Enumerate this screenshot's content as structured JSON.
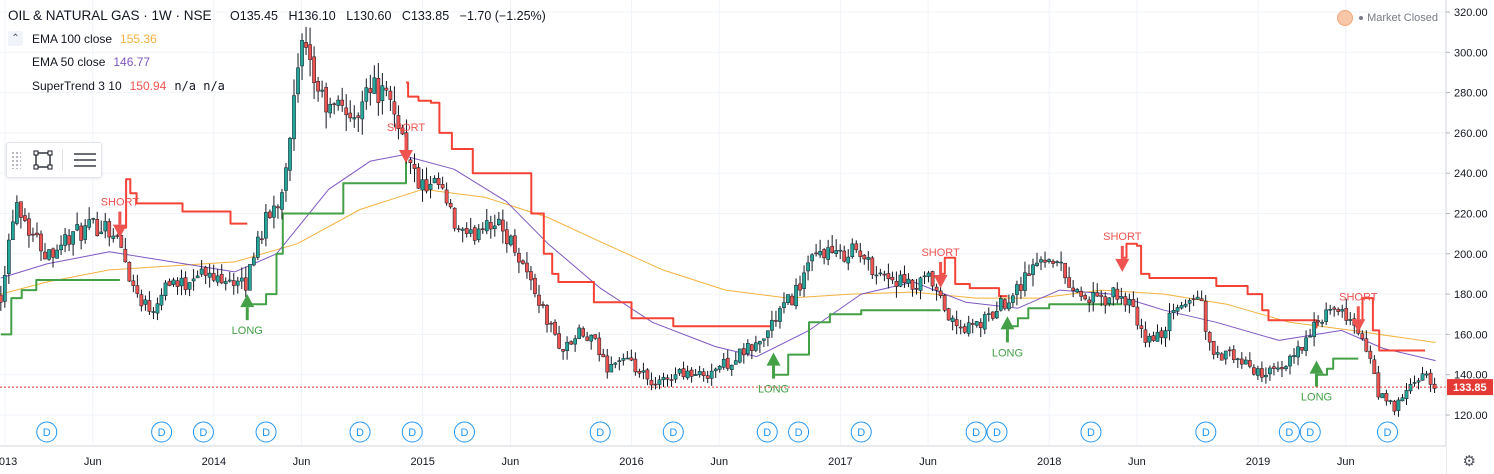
{
  "header": {
    "symbol": "OIL & NATURAL GAS · 1W · NSE",
    "o_label": "O",
    "o_value": "135.45",
    "h_label": "H",
    "h_value": "136.10",
    "l_label": "L",
    "l_value": "130.60",
    "c_label": "C",
    "c_value": "133.85",
    "change": "−1.70 (−1.25%)"
  },
  "legend": [
    {
      "label": "EMA 100 close",
      "value": "155.36",
      "color": "#f5b23e"
    },
    {
      "label": "EMA 50 close",
      "value": "146.77",
      "color": "#7e57c2"
    },
    {
      "label": "SuperTrend 3 10",
      "value": "150.94",
      "extra": "n/a n/a",
      "color": "#ef5350"
    }
  ],
  "status": {
    "label": "Market Closed"
  },
  "colors": {
    "up": "#26a69a",
    "down": "#ef5350",
    "wick": "#131722",
    "supertrend_up": "#43a047",
    "supertrend_down": "#f44336",
    "ema100": "#f5b23e",
    "ema50": "#7e57c2",
    "price_line": "#e53935",
    "dividend": "#2196f3"
  },
  "icons": {
    "toolbox": [
      "rectangle-select-icon",
      "list-settings-icon"
    ],
    "settings": "gear-icon"
  },
  "chart_data": {
    "type": "candlestick",
    "title": "OIL & NATURAL GAS · 1W · NSE",
    "y_axis": {
      "range": [
        110,
        322
      ],
      "ticks": [
        120,
        140,
        160,
        180,
        200,
        220,
        240,
        260,
        280,
        300,
        320
      ],
      "tick_labels": [
        "120.00",
        "140.00",
        "160.00",
        "180.00",
        "200.00",
        "220.00",
        "240.00",
        "260.00",
        "280.00",
        "300.00",
        "320.00"
      ],
      "position": "right",
      "grid": true
    },
    "x_axis": {
      "range": [
        "2013-01",
        "2019-10"
      ],
      "labels": [
        {
          "t": 2013.0,
          "text": "2013"
        },
        {
          "t": 2013.42,
          "text": "Jun"
        },
        {
          "t": 2014.0,
          "text": "2014"
        },
        {
          "t": 2014.42,
          "text": "Jun"
        },
        {
          "t": 2015.0,
          "text": "2015"
        },
        {
          "t": 2015.42,
          "text": "Jun"
        },
        {
          "t": 2016.0,
          "text": "2016"
        },
        {
          "t": 2016.42,
          "text": "Jun"
        },
        {
          "t": 2017.0,
          "text": "2017"
        },
        {
          "t": 2017.42,
          "text": "Jun"
        },
        {
          "t": 2018.0,
          "text": "2018"
        },
        {
          "t": 2018.42,
          "text": "Jun"
        },
        {
          "t": 2019.0,
          "text": "2019"
        },
        {
          "t": 2019.42,
          "text": "Jun"
        }
      ]
    },
    "price_path": [
      [
        2012.98,
        180
      ],
      [
        2013.05,
        228
      ],
      [
        2013.12,
        212
      ],
      [
        2013.2,
        200
      ],
      [
        2013.3,
        208
      ],
      [
        2013.42,
        213
      ],
      [
        2013.48,
        215
      ],
      [
        2013.55,
        205
      ],
      [
        2013.62,
        182
      ],
      [
        2013.7,
        172
      ],
      [
        2013.78,
        188
      ],
      [
        2013.85,
        184
      ],
      [
        2013.92,
        192
      ],
      [
        2014.0,
        187
      ],
      [
        2014.05,
        190
      ],
      [
        2014.1,
        186
      ],
      [
        2014.15,
        183
      ],
      [
        2014.2,
        205
      ],
      [
        2014.25,
        216
      ],
      [
        2014.32,
        228
      ],
      [
        2014.38,
        272
      ],
      [
        2014.42,
        302
      ],
      [
        2014.48,
        286
      ],
      [
        2014.55,
        270
      ],
      [
        2014.62,
        275
      ],
      [
        2014.68,
        262
      ],
      [
        2014.72,
        286
      ],
      [
        2014.8,
        280
      ],
      [
        2014.88,
        268
      ],
      [
        2014.95,
        240
      ],
      [
        2015.02,
        230
      ],
      [
        2015.08,
        234
      ],
      [
        2015.15,
        214
      ],
      [
        2015.22,
        206
      ],
      [
        2015.3,
        218
      ],
      [
        2015.38,
        212
      ],
      [
        2015.45,
        202
      ],
      [
        2015.52,
        186
      ],
      [
        2015.6,
        166
      ],
      [
        2015.67,
        152
      ],
      [
        2015.75,
        160
      ],
      [
        2015.82,
        156
      ],
      [
        2015.88,
        144
      ],
      [
        2015.95,
        148
      ],
      [
        2016.05,
        140
      ],
      [
        2016.1,
        133
      ],
      [
        2016.18,
        139
      ],
      [
        2016.25,
        142
      ],
      [
        2016.32,
        139
      ],
      [
        2016.4,
        143
      ],
      [
        2016.48,
        147
      ],
      [
        2016.55,
        152
      ],
      [
        2016.62,
        156
      ],
      [
        2016.7,
        170
      ],
      [
        2016.78,
        180
      ],
      [
        2016.85,
        194
      ],
      [
        2016.92,
        202
      ],
      [
        2017.0,
        198
      ],
      [
        2017.05,
        204
      ],
      [
        2017.12,
        196
      ],
      [
        2017.2,
        190
      ],
      [
        2017.28,
        186
      ],
      [
        2017.36,
        182
      ],
      [
        2017.42,
        188
      ],
      [
        2017.48,
        176
      ],
      [
        2017.55,
        163
      ],
      [
        2017.62,
        163
      ],
      [
        2017.7,
        167
      ],
      [
        2017.78,
        176
      ],
      [
        2017.85,
        184
      ],
      [
        2017.92,
        193
      ],
      [
        2018.0,
        200
      ],
      [
        2018.05,
        194
      ],
      [
        2018.12,
        182
      ],
      [
        2018.18,
        178
      ],
      [
        2018.25,
        176
      ],
      [
        2018.32,
        180
      ],
      [
        2018.38,
        176
      ],
      [
        2018.45,
        158
      ],
      [
        2018.52,
        158
      ],
      [
        2018.58,
        168
      ],
      [
        2018.65,
        176
      ],
      [
        2018.72,
        180
      ],
      [
        2018.78,
        148
      ],
      [
        2018.85,
        150
      ],
      [
        2018.92,
        146
      ],
      [
        2018.98,
        142
      ],
      [
        2019.05,
        141
      ],
      [
        2019.12,
        141
      ],
      [
        2019.18,
        152
      ],
      [
        2019.25,
        160
      ],
      [
        2019.32,
        170
      ],
      [
        2019.38,
        170
      ],
      [
        2019.45,
        168
      ],
      [
        2019.52,
        152
      ],
      [
        2019.58,
        130
      ],
      [
        2019.65,
        123
      ],
      [
        2019.72,
        132
      ],
      [
        2019.78,
        140
      ],
      [
        2019.85,
        133
      ]
    ],
    "series": [
      {
        "name": "EMA 100 close",
        "last": 155.36,
        "color": "#f5b23e",
        "points": [
          [
            2012.98,
            180
          ],
          [
            2013.2,
            186
          ],
          [
            2013.5,
            192
          ],
          [
            2013.8,
            194
          ],
          [
            2014.1,
            196
          ],
          [
            2014.4,
            205
          ],
          [
            2014.7,
            222
          ],
          [
            2015.0,
            232
          ],
          [
            2015.3,
            228
          ],
          [
            2015.6,
            218
          ],
          [
            2015.85,
            206
          ],
          [
            2016.15,
            192
          ],
          [
            2016.45,
            182
          ],
          [
            2016.75,
            178
          ],
          [
            2017.05,
            180
          ],
          [
            2017.35,
            181
          ],
          [
            2017.65,
            178
          ],
          [
            2017.95,
            178
          ],
          [
            2018.25,
            182
          ],
          [
            2018.55,
            180
          ],
          [
            2018.85,
            175
          ],
          [
            2019.15,
            166
          ],
          [
            2019.45,
            162
          ],
          [
            2019.85,
            156
          ]
        ]
      },
      {
        "name": "EMA 50 close",
        "last": 146.77,
        "color": "#7e57c2",
        "points": [
          [
            2012.98,
            188
          ],
          [
            2013.2,
            195
          ],
          [
            2013.5,
            201
          ],
          [
            2013.8,
            196
          ],
          [
            2014.1,
            191
          ],
          [
            2014.3,
            200
          ],
          [
            2014.55,
            232
          ],
          [
            2014.75,
            246
          ],
          [
            2014.9,
            249
          ],
          [
            2015.15,
            242
          ],
          [
            2015.4,
            226
          ],
          [
            2015.6,
            205
          ],
          [
            2015.85,
            183
          ],
          [
            2016.1,
            166
          ],
          [
            2016.4,
            154
          ],
          [
            2016.6,
            149
          ],
          [
            2016.85,
            162
          ],
          [
            2017.1,
            180
          ],
          [
            2017.35,
            186
          ],
          [
            2017.6,
            176
          ],
          [
            2017.85,
            173
          ],
          [
            2018.05,
            182
          ],
          [
            2018.3,
            180
          ],
          [
            2018.55,
            172
          ],
          [
            2018.8,
            166
          ],
          [
            2019.1,
            157
          ],
          [
            2019.4,
            162
          ],
          [
            2019.6,
            153
          ],
          [
            2019.85,
            147
          ]
        ]
      },
      {
        "name": "SuperTrend 3 10",
        "last": 150.94,
        "color": "#ef5350",
        "segments": [
          {
            "dir": "up",
            "points": [
              [
                2012.98,
                160
              ],
              [
                2013.03,
                178
              ],
              [
                2013.08,
                182
              ],
              [
                2013.15,
                187
              ],
              [
                2013.42,
                187
              ],
              [
                2013.46,
                187
              ],
              [
                2013.55,
                187
              ]
            ]
          },
          {
            "dir": "down",
            "points": [
              [
                2013.55,
                213
              ],
              [
                2013.58,
                237
              ],
              [
                2013.6,
                230
              ],
              [
                2013.63,
                225
              ],
              [
                2013.8,
                225
              ],
              [
                2013.85,
                221
              ],
              [
                2014.05,
                221
              ],
              [
                2014.08,
                215
              ],
              [
                2014.16,
                215
              ]
            ]
          },
          {
            "dir": "up",
            "points": [
              [
                2014.16,
                175
              ],
              [
                2014.25,
                180
              ],
              [
                2014.3,
                200
              ],
              [
                2014.33,
                220
              ],
              [
                2014.55,
                220
              ],
              [
                2014.62,
                235
              ],
              [
                2014.88,
                235
              ],
              [
                2014.92,
                250
              ]
            ]
          },
          {
            "dir": "down",
            "points": [
              [
                2014.92,
                285
              ],
              [
                2014.93,
                278
              ],
              [
                2014.98,
                276
              ],
              [
                2015.04,
                275
              ],
              [
                2015.08,
                260
              ],
              [
                2015.14,
                252
              ],
              [
                2015.2,
                252
              ],
              [
                2015.24,
                240
              ],
              [
                2015.45,
                240
              ],
              [
                2015.52,
                220
              ],
              [
                2015.58,
                200
              ],
              [
                2015.62,
                190
              ],
              [
                2015.65,
                186
              ],
              [
                2015.78,
                186
              ],
              [
                2015.82,
                176
              ],
              [
                2015.95,
                176
              ],
              [
                2016.0,
                168
              ],
              [
                2016.12,
                168
              ],
              [
                2016.2,
                164
              ],
              [
                2016.5,
                164
              ],
              [
                2016.68,
                164
              ]
            ]
          },
          {
            "dir": "up",
            "points": [
              [
                2016.68,
                140
              ],
              [
                2016.75,
                150
              ],
              [
                2016.85,
                166
              ],
              [
                2016.95,
                170
              ],
              [
                2017.1,
                172
              ],
              [
                2017.35,
                172
              ],
              [
                2017.48,
                172
              ]
            ]
          },
          {
            "dir": "down",
            "points": [
              [
                2017.48,
                190
              ],
              [
                2017.5,
                198
              ],
              [
                2017.55,
                185
              ],
              [
                2017.62,
                183
              ],
              [
                2017.7,
                183
              ],
              [
                2017.76,
                179
              ],
              [
                2017.8,
                179
              ]
            ]
          },
          {
            "dir": "up",
            "points": [
              [
                2017.8,
                164
              ],
              [
                2017.85,
                168
              ],
              [
                2017.9,
                173
              ],
              [
                2018.0,
                175
              ],
              [
                2018.12,
                175
              ],
              [
                2018.3,
                175
              ],
              [
                2018.35,
                175
              ]
            ]
          },
          {
            "dir": "down",
            "points": [
              [
                2018.35,
                198
              ],
              [
                2018.37,
                205
              ],
              [
                2018.42,
                204
              ],
              [
                2018.44,
                190
              ],
              [
                2018.48,
                188
              ],
              [
                2018.75,
                188
              ],
              [
                2018.8,
                184
              ],
              [
                2018.95,
                180
              ],
              [
                2019.02,
                172
              ],
              [
                2019.05,
                167
              ],
              [
                2019.28,
                163
              ]
            ]
          },
          {
            "dir": "up",
            "points": [
              [
                2019.28,
                140
              ],
              [
                2019.33,
                143
              ],
              [
                2019.36,
                148
              ],
              [
                2019.48,
                148
              ]
            ]
          },
          {
            "dir": "down",
            "points": [
              [
                2019.48,
                166
              ],
              [
                2019.5,
                178
              ],
              [
                2019.55,
                162
              ],
              [
                2019.58,
                152
              ],
              [
                2019.8,
                152
              ]
            ]
          }
        ]
      }
    ],
    "signals": [
      {
        "t": 2013.55,
        "type": "SHORT",
        "price": 213
      },
      {
        "t": 2014.16,
        "type": "LONG",
        "price": 175
      },
      {
        "t": 2014.92,
        "type": "SHORT",
        "price": 250
      },
      {
        "t": 2016.68,
        "type": "LONG",
        "price": 146
      },
      {
        "t": 2017.48,
        "type": "SHORT",
        "price": 188
      },
      {
        "t": 2017.8,
        "type": "LONG",
        "price": 164
      },
      {
        "t": 2018.35,
        "type": "SHORT",
        "price": 196
      },
      {
        "t": 2019.28,
        "type": "LONG",
        "price": 142
      },
      {
        "t": 2019.48,
        "type": "SHORT",
        "price": 166
      }
    ],
    "dividends": {
      "label": "D",
      "t": [
        2013.2,
        2013.75,
        2013.95,
        2014.25,
        2014.7,
        2014.95,
        2015.2,
        2015.85,
        2016.2,
        2016.65,
        2016.8,
        2017.1,
        2017.65,
        2017.75,
        2018.2,
        2018.75,
        2019.15,
        2019.25,
        2019.62
      ]
    },
    "last_price": {
      "value": 133.85,
      "label": "133.85"
    }
  }
}
